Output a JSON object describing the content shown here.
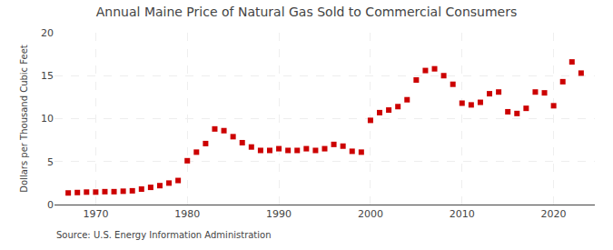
{
  "chart_data": {
    "type": "scatter",
    "title": "Annual Maine Price of Natural Gas Sold to Commercial Consumers",
    "ylabel": "Dollars per Thousand Cubic Feet",
    "annotations": [
      "Source: U.S. Energy Information Administration"
    ],
    "x": [
      1967,
      1968,
      1969,
      1970,
      1971,
      1972,
      1973,
      1974,
      1975,
      1976,
      1977,
      1978,
      1979,
      1980,
      1981,
      1982,
      1983,
      1984,
      1985,
      1986,
      1987,
      1988,
      1989,
      1990,
      1991,
      1992,
      1993,
      1994,
      1995,
      1996,
      1997,
      1998,
      1999,
      2000,
      2001,
      2002,
      2003,
      2004,
      2005,
      2006,
      2007,
      2008,
      2009,
      2010,
      2011,
      2012,
      2013,
      2014,
      2015,
      2016,
      2017,
      2018,
      2019,
      2020,
      2021,
      2022,
      2023
    ],
    "values": [
      1.35,
      1.4,
      1.45,
      1.45,
      1.5,
      1.5,
      1.55,
      1.6,
      1.8,
      2.0,
      2.2,
      2.5,
      2.8,
      5.1,
      6.1,
      7.1,
      8.8,
      8.6,
      7.9,
      7.2,
      6.7,
      6.3,
      6.3,
      6.5,
      6.3,
      6.3,
      6.5,
      6.3,
      6.5,
      7.0,
      6.8,
      6.2,
      6.1,
      9.8,
      10.7,
      11.0,
      11.4,
      12.2,
      14.5,
      15.6,
      15.8,
      15.0,
      14.0,
      11.8,
      11.6,
      11.9,
      12.9,
      13.1,
      10.8,
      10.6,
      11.2,
      13.1,
      13.0,
      11.5,
      14.3,
      16.6,
      15.3
    ],
    "color": "#cc0000",
    "marker": "square",
    "xlim": [
      1965.5,
      2024.5
    ],
    "xticks": [
      1970,
      1980,
      1990,
      2000,
      2010,
      2020
    ],
    "ylim": [
      0,
      20
    ],
    "yticks": [
      0,
      5,
      10,
      15,
      20
    ],
    "grid": true
  }
}
